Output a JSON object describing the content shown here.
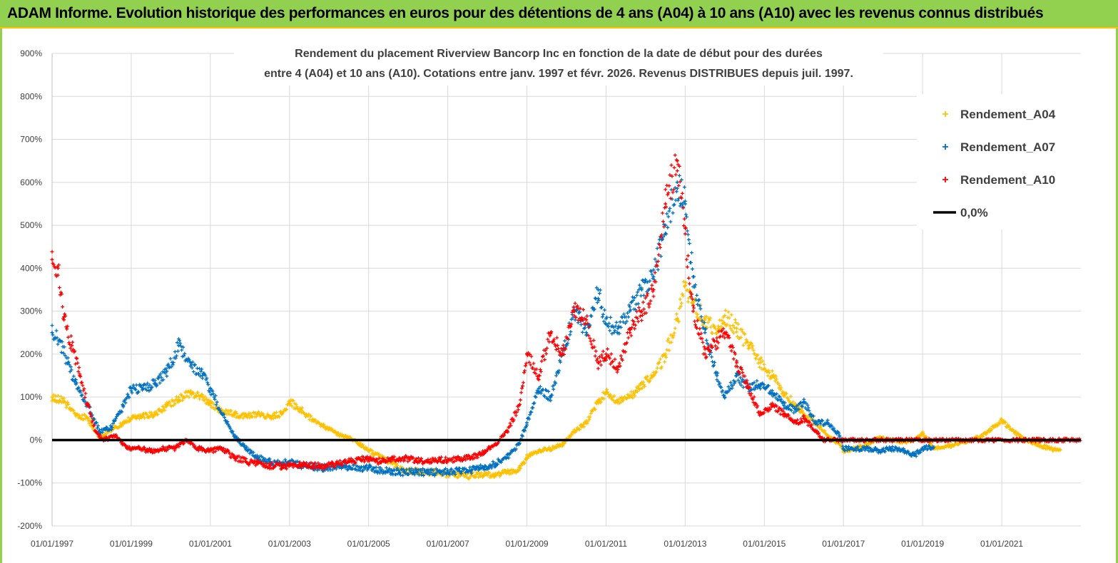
{
  "banner": {
    "title": "ADAM Informe. Evolution historique des performances en euros pour des détentions de 4 ans (A04) à 10 ans (A10) avec les revenus connus distribués",
    "background": "#92d050"
  },
  "chart_data": {
    "type": "scatter",
    "title_line1": "Rendement du placement Riverview  Bancorp Inc en fonction de la date de début pour des durées",
    "title_line2": "entre 4 (A04) et 10 ans (A10). Cotations entre janv. 1997 et févr. 2026. Revenus DISTRIBUES depuis juil. 1997.",
    "xlabel": "",
    "ylabel": "",
    "xlim": [
      1997.0,
      2023.0
    ],
    "ylim": [
      -200,
      900
    ],
    "y_ticks": [
      -200,
      -100,
      0,
      100,
      200,
      300,
      400,
      500,
      600,
      700,
      800,
      900
    ],
    "y_tick_labels": [
      "-200%",
      "-100%",
      "0%",
      "100%",
      "200%",
      "300%",
      "400%",
      "500%",
      "600%",
      "700%",
      "800%",
      "900%"
    ],
    "x_ticks": [
      1997,
      1999,
      2001,
      2003,
      2005,
      2007,
      2009,
      2011,
      2013,
      2015,
      2017,
      2019,
      2021
    ],
    "x_tick_labels": [
      "01/01/1997",
      "01/01/1999",
      "01/01/2001",
      "01/01/2003",
      "01/01/2005",
      "01/01/2007",
      "01/01/2009",
      "01/01/2011",
      "01/01/2013",
      "01/01/2015",
      "01/01/2017",
      "01/01/2019",
      "01/01/2021"
    ],
    "grid": true,
    "legend_position": "top-right",
    "series": [
      {
        "name": "Rendement_A04",
        "color": "#ffc000",
        "x": [
          1997.0,
          1997.3,
          1997.6,
          1997.9,
          1998.2,
          1998.5,
          1998.8,
          1999.0,
          1999.3,
          1999.6,
          1999.9,
          2000.2,
          2000.5,
          2000.8,
          2001.0,
          2001.3,
          2001.6,
          2001.9,
          2002.2,
          2002.5,
          2002.8,
          2003.0,
          2003.3,
          2003.6,
          2003.9,
          2004.2,
          2004.5,
          2004.8,
          2005.0,
          2005.3,
          2005.6,
          2005.9,
          2006.2,
          2006.5,
          2006.8,
          2007.0,
          2007.3,
          2007.6,
          2007.9,
          2008.2,
          2008.5,
          2008.8,
          2009.0,
          2009.3,
          2009.6,
          2009.9,
          2010.2,
          2010.5,
          2010.8,
          2011.0,
          2011.3,
          2011.6,
          2011.9,
          2012.2,
          2012.5,
          2012.8,
          2013.0,
          2013.2,
          2013.5,
          2013.8,
          2014.0,
          2014.3,
          2014.6,
          2014.9,
          2015.2,
          2015.5,
          2015.8,
          2016.0,
          2016.3,
          2016.6,
          2016.9,
          2017.0,
          2017.3,
          2017.6,
          2017.9,
          2018.2,
          2018.5,
          2018.8,
          2019.0,
          2019.3,
          2019.6,
          2019.9,
          2020.2,
          2020.5,
          2020.8,
          2021.0,
          2021.3,
          2021.6,
          2021.9,
          2022.2,
          2022.5
        ],
        "y": [
          100,
          90,
          60,
          50,
          5,
          25,
          40,
          50,
          55,
          60,
          80,
          95,
          110,
          100,
          85,
          65,
          60,
          55,
          60,
          55,
          60,
          90,
          70,
          45,
          30,
          15,
          5,
          -10,
          -25,
          -40,
          -55,
          -70,
          -72,
          -75,
          -78,
          -78,
          -80,
          -82,
          -82,
          -78,
          -75,
          -70,
          -40,
          -25,
          -20,
          -10,
          20,
          40,
          90,
          110,
          90,
          100,
          130,
          150,
          200,
          280,
          360,
          320,
          280,
          250,
          290,
          260,
          220,
          180,
          150,
          110,
          80,
          60,
          40,
          10,
          -10,
          -25,
          -20,
          -10,
          5,
          0,
          -5,
          0,
          15,
          -20,
          -15,
          -10,
          0,
          10,
          30,
          45,
          20,
          0,
          -10,
          -20,
          -25
        ]
      },
      {
        "name": "Rendement_A07",
        "color": "#0070c0",
        "x": [
          1997.0,
          1997.2,
          1997.4,
          1997.6,
          1997.9,
          1998.2,
          1998.5,
          1998.8,
          1999.0,
          1999.3,
          1999.6,
          1999.9,
          2000.2,
          2000.5,
          2000.8,
          2001.0,
          2001.3,
          2001.6,
          2001.9,
          2002.2,
          2002.5,
          2002.8,
          2003.0,
          2003.3,
          2003.6,
          2003.9,
          2004.2,
          2004.5,
          2004.8,
          2005.0,
          2005.3,
          2005.6,
          2005.9,
          2006.2,
          2006.5,
          2006.8,
          2007.0,
          2007.3,
          2007.6,
          2007.9,
          2008.2,
          2008.5,
          2008.8,
          2009.0,
          2009.3,
          2009.6,
          2009.9,
          2010.2,
          2010.5,
          2010.8,
          2011.0,
          2011.3,
          2011.6,
          2011.9,
          2012.2,
          2012.5,
          2012.8,
          2013.0,
          2013.2,
          2013.5,
          2013.8,
          2014.0,
          2014.3,
          2014.6,
          2014.9,
          2015.2,
          2015.5,
          2015.8,
          2016.0,
          2016.3,
          2016.6,
          2016.9,
          2017.0,
          2017.3,
          2017.6,
          2017.9,
          2018.2,
          2018.5,
          2018.8,
          2019.0,
          2019.3
        ],
        "y": [
          250,
          230,
          180,
          130,
          80,
          20,
          30,
          80,
          120,
          120,
          130,
          160,
          220,
          180,
          150,
          120,
          60,
          10,
          -20,
          -40,
          -50,
          -55,
          -50,
          -60,
          -62,
          -65,
          -60,
          -62,
          -65,
          -65,
          -70,
          -72,
          -75,
          -75,
          -75,
          -75,
          -75,
          -72,
          -70,
          -65,
          -55,
          -40,
          -10,
          40,
          120,
          100,
          200,
          300,
          250,
          350,
          270,
          260,
          300,
          350,
          380,
          500,
          600,
          550,
          380,
          250,
          150,
          100,
          150,
          120,
          130,
          110,
          80,
          70,
          90,
          40,
          40,
          10,
          -20,
          -20,
          -20,
          -25,
          -20,
          -25,
          -35,
          -20,
          -15
        ]
      },
      {
        "name": "Rendement_A10",
        "color": "#ff0000",
        "x": [
          1997.0,
          1997.15,
          1997.3,
          1997.5,
          1997.7,
          1997.9,
          1998.1,
          1998.3,
          1998.6,
          1998.9,
          1999.2,
          1999.5,
          1999.8,
          2000.1,
          2000.4,
          2000.7,
          2001.0,
          2001.3,
          2001.6,
          2001.9,
          2002.2,
          2002.5,
          2002.8,
          2003.0,
          2003.3,
          2003.6,
          2003.9,
          2004.2,
          2004.5,
          2004.8,
          2005.0,
          2005.3,
          2005.6,
          2005.9,
          2006.2,
          2006.5,
          2006.8,
          2007.0,
          2007.3,
          2007.6,
          2007.9,
          2008.2,
          2008.5,
          2008.8,
          2009.0,
          2009.3,
          2009.6,
          2009.9,
          2010.2,
          2010.5,
          2010.8,
          2011.0,
          2011.3,
          2011.6,
          2011.9,
          2012.2,
          2012.5,
          2012.8,
          2013.0,
          2013.2,
          2013.5,
          2013.8,
          2014.0,
          2014.3,
          2014.6,
          2014.9,
          2015.2,
          2015.5,
          2015.8,
          2016.0,
          2016.5,
          2017.0,
          2017.5,
          2018.0,
          2018.5,
          2019.0,
          2019.5,
          2020.0,
          2020.5,
          2021.0,
          2021.5,
          2022.0,
          2022.5,
          2023.0
        ],
        "y": [
          420,
          400,
          280,
          220,
          150,
          80,
          20,
          0,
          10,
          -20,
          -20,
          -25,
          -20,
          -20,
          0,
          -20,
          -25,
          -20,
          -40,
          -50,
          -55,
          -60,
          -60,
          -60,
          -58,
          -60,
          -62,
          -55,
          -50,
          -45,
          -45,
          -50,
          -45,
          -42,
          -48,
          -50,
          -45,
          -48,
          -42,
          -40,
          -30,
          -10,
          20,
          80,
          200,
          150,
          250,
          200,
          300,
          280,
          180,
          200,
          170,
          250,
          300,
          350,
          550,
          650,
          480,
          300,
          200,
          230,
          250,
          180,
          120,
          60,
          80,
          60,
          40,
          50,
          0,
          0,
          0,
          0,
          0,
          0,
          0,
          0,
          0,
          0,
          0,
          0,
          0,
          0
        ]
      },
      {
        "name": "0,0%",
        "color": "#000000",
        "type": "line",
        "x": [
          1997.0,
          2023.0
        ],
        "y": [
          0,
          0
        ]
      }
    ]
  }
}
